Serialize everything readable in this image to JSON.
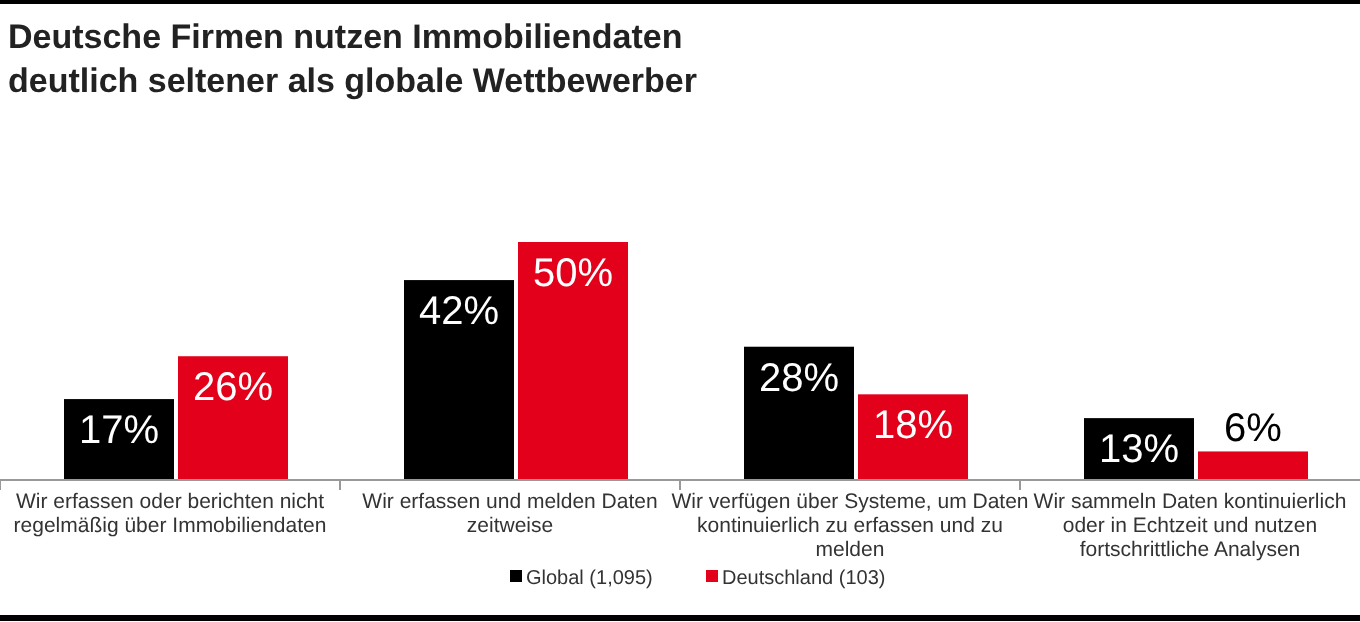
{
  "chart_data": {
    "type": "bar",
    "title": "Deutsche Firmen nutzen Immobiliendaten deutlich seltener als globale Wettbewerber",
    "categories": [
      "Wir erfassen oder berichten nicht regelmäßig über Immobiliendaten",
      "Wir erfassen und melden Daten zeitweise",
      "Wir verfügen über Systeme, um Daten kontinuierlich zu erfassen und zu melden",
      "Wir sammeln Daten kontinuierlich oder in Echtzeit und nutzen fortschrittliche Analysen"
    ],
    "series": [
      {
        "name": "Global (1,095)",
        "color": "#000000",
        "values": [
          17,
          42,
          28,
          13
        ],
        "value_labels": [
          "17%",
          "42%",
          "28%",
          "13%"
        ]
      },
      {
        "name": "Deutschland (103)",
        "color": "#e2001a",
        "values": [
          26,
          50,
          18,
          6
        ],
        "value_labels": [
          "26%",
          "50%",
          "18%",
          "6%"
        ]
      }
    ],
    "legend": "bottom"
  }
}
